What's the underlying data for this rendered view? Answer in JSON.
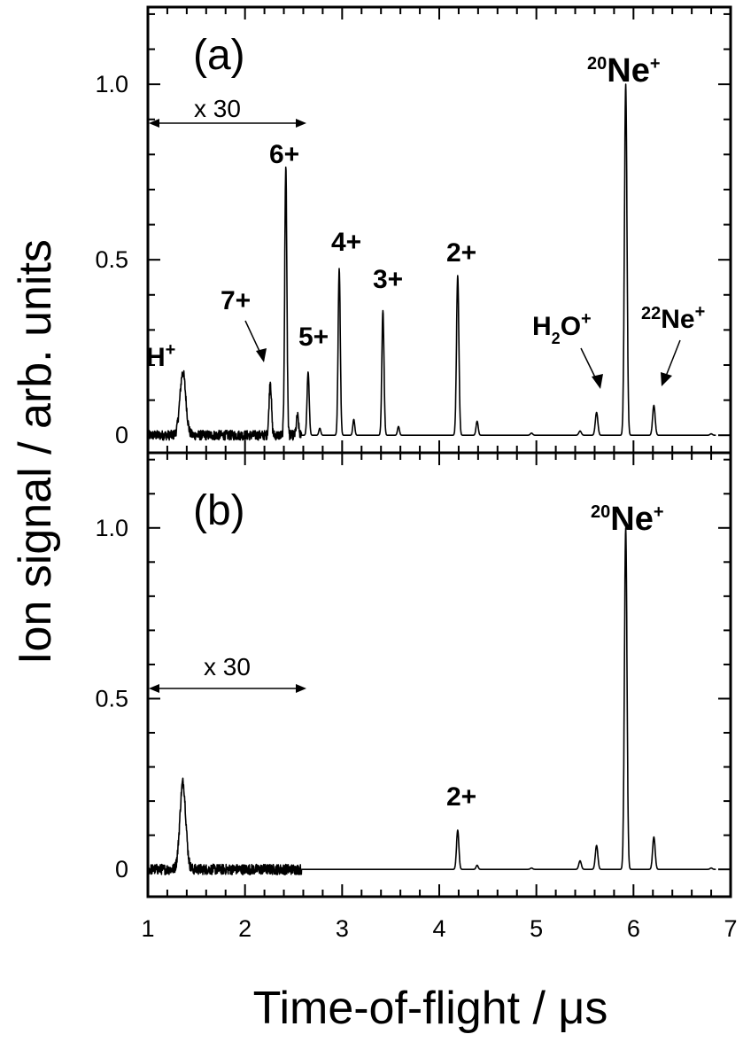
{
  "chart_data": {
    "type": "line",
    "xlabel": "Time-of-flight / μs",
    "ylabel": "Ion signal / arb. units",
    "xlim": [
      1,
      7
    ],
    "x_ticks": [
      "1",
      "2",
      "3",
      "4",
      "5",
      "6",
      "7"
    ],
    "y_tick_labels": [
      "0",
      "0.5",
      "1.0"
    ],
    "panels": [
      {
        "label": "(a)",
        "ylim": [
          -0.05,
          1.22
        ],
        "y_ticks": [
          0,
          0.5,
          1.0
        ],
        "scale_region": {
          "text": "x 30",
          "x_start": 1.0,
          "x_end": 2.58,
          "factor": 30
        },
        "peaks": [
          {
            "x": 1.36,
            "height": 0.18,
            "width": 0.03,
            "annotation": "H",
            "ann_sup": "+"
          },
          {
            "x": 2.26,
            "height": 0.155,
            "width": 0.012,
            "annotation": "7+"
          },
          {
            "x": 2.42,
            "height": 0.77,
            "width": 0.011,
            "annotation": "6+"
          },
          {
            "x": 2.54,
            "height": 0.055,
            "width": 0.011
          },
          {
            "x": 2.65,
            "height": 0.18,
            "width": 0.011,
            "annotation": "5+"
          },
          {
            "x": 2.77,
            "height": 0.02,
            "width": 0.01
          },
          {
            "x": 2.97,
            "height": 0.475,
            "width": 0.011,
            "annotation": "4+"
          },
          {
            "x": 3.12,
            "height": 0.045,
            "width": 0.01
          },
          {
            "x": 3.42,
            "height": 0.355,
            "width": 0.011,
            "annotation": "3+"
          },
          {
            "x": 3.58,
            "height": 0.025,
            "width": 0.01
          },
          {
            "x": 4.19,
            "height": 0.455,
            "width": 0.012,
            "annotation": "2+"
          },
          {
            "x": 4.39,
            "height": 0.04,
            "width": 0.011
          },
          {
            "x": 4.95,
            "height": 0.006,
            "width": 0.012
          },
          {
            "x": 5.45,
            "height": 0.012,
            "width": 0.013
          },
          {
            "x": 5.62,
            "height": 0.065,
            "width": 0.013,
            "annotation": "H₂O⁺"
          },
          {
            "x": 5.92,
            "height": 1.0,
            "width": 0.013,
            "annotation": "²⁰Ne⁺"
          },
          {
            "x": 6.21,
            "height": 0.085,
            "width": 0.013,
            "annotation": "²²Ne⁺"
          },
          {
            "x": 6.8,
            "height": 0.004,
            "width": 0.012
          }
        ]
      },
      {
        "label": "(b)",
        "ylim": [
          -0.08,
          1.22
        ],
        "y_ticks": [
          0,
          0.5,
          1.0
        ],
        "scale_region": {
          "text": "x 30",
          "x_start": 1.0,
          "x_end": 2.58,
          "factor": 30
        },
        "peaks": [
          {
            "x": 1.36,
            "height": 0.255,
            "width": 0.03
          },
          {
            "x": 4.19,
            "height": 0.115,
            "width": 0.012,
            "annotation": "2+"
          },
          {
            "x": 4.39,
            "height": 0.012,
            "width": 0.011
          },
          {
            "x": 4.95,
            "height": 0.004,
            "width": 0.012
          },
          {
            "x": 5.45,
            "height": 0.025,
            "width": 0.013
          },
          {
            "x": 5.62,
            "height": 0.07,
            "width": 0.013
          },
          {
            "x": 5.92,
            "height": 1.0,
            "width": 0.013,
            "annotation": "²⁰Ne⁺"
          },
          {
            "x": 6.21,
            "height": 0.095,
            "width": 0.013
          },
          {
            "x": 6.8,
            "height": 0.004,
            "width": 0.012
          }
        ]
      }
    ]
  }
}
